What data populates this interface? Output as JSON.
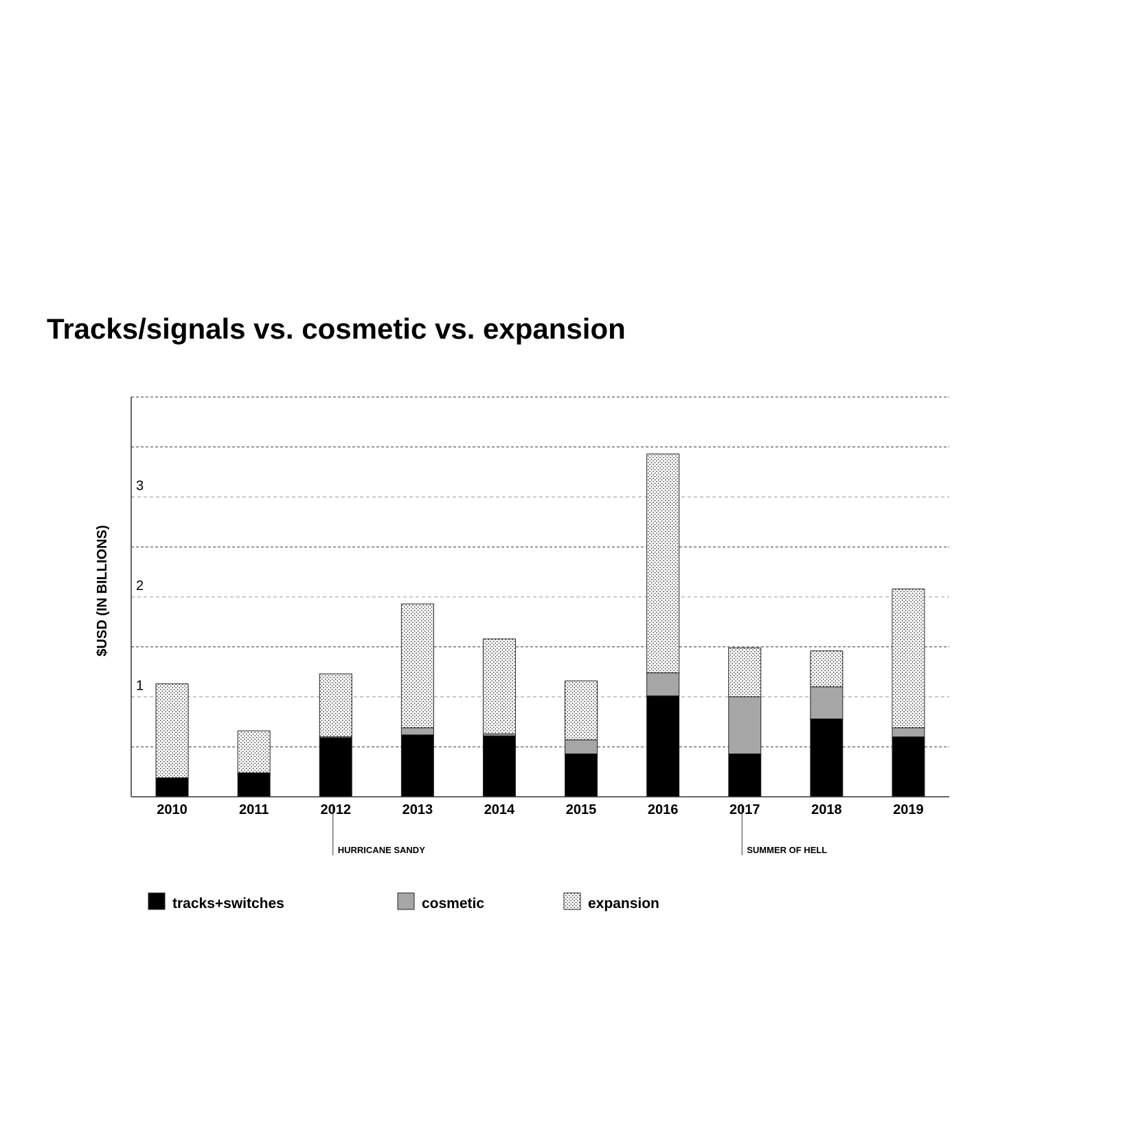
{
  "title": "Tracks/signals vs. cosmetic vs. expansion",
  "chart_data": {
    "type": "bar",
    "stacked": true,
    "title": "Tracks/signals vs. cosmetic vs. expansion",
    "xlabel": "",
    "ylabel": "$USD (IN BILLIONS)",
    "ylim": [
      0,
      4
    ],
    "yticks": [
      1,
      2,
      3
    ],
    "grid": true,
    "legend_position": "bottom",
    "categories": [
      "2010",
      "2011",
      "2012",
      "2013",
      "2014",
      "2015",
      "2016",
      "2017",
      "2018",
      "2019"
    ],
    "series": [
      {
        "name": "tracks+switches",
        "color": "#000000",
        "values": [
          0.19,
          0.24,
          0.59,
          0.62,
          0.61,
          0.43,
          1.01,
          0.43,
          0.78,
          0.6
        ]
      },
      {
        "name": "cosmetic",
        "color": "#a6a6a6",
        "values": [
          0.0,
          0.0,
          0.01,
          0.07,
          0.02,
          0.14,
          0.23,
          0.57,
          0.32,
          0.09
        ]
      },
      {
        "name": "expansion",
        "color": "#dotted",
        "values": [
          0.94,
          0.42,
          0.63,
          1.24,
          0.95,
          0.59,
          2.19,
          0.49,
          0.36,
          1.39
        ]
      }
    ],
    "annotations": [
      {
        "category": "2012",
        "text": "HURRICANE SANDY"
      },
      {
        "category": "2017",
        "text": "SUMMER OF HELL"
      }
    ]
  }
}
